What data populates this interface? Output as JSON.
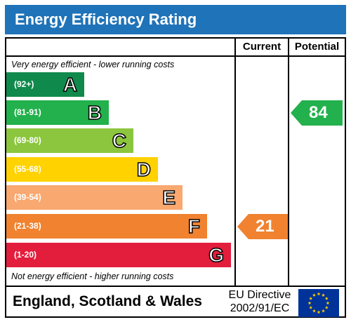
{
  "header": {
    "title": "Energy Efficiency Rating"
  },
  "columns": {
    "current": "Current",
    "potential": "Potential"
  },
  "notes": {
    "top": "Very energy efficient - lower running costs",
    "bottom": "Not energy efficient - higher running costs"
  },
  "colors": {
    "header": "#1f73b8",
    "A": "#0f8a4c",
    "B": "#22b14c",
    "C": "#8cc63e",
    "D": "#ffd200",
    "E": "#f9a870",
    "F": "#f08230",
    "G": "#e31d3c"
  },
  "footer": {
    "country": "England, Scotland & Wales",
    "eu_line1": "EU Directive",
    "eu_line2": "2002/91/EC",
    "flag_icon": "eu-flag-icon"
  },
  "chart_data": {
    "type": "table",
    "bands": [
      {
        "letter": "A",
        "range": "(92+)"
      },
      {
        "letter": "B",
        "range": "(81-91)"
      },
      {
        "letter": "C",
        "range": "(69-80)"
      },
      {
        "letter": "D",
        "range": "(55-68)"
      },
      {
        "letter": "E",
        "range": "(39-54)"
      },
      {
        "letter": "F",
        "range": "(21-38)"
      },
      {
        "letter": "G",
        "range": "(1-20)"
      }
    ],
    "current": {
      "value": "21",
      "band": "F",
      "color": "#f08230"
    },
    "potential": {
      "value": "84",
      "band": "B",
      "color": "#22b14c"
    }
  }
}
